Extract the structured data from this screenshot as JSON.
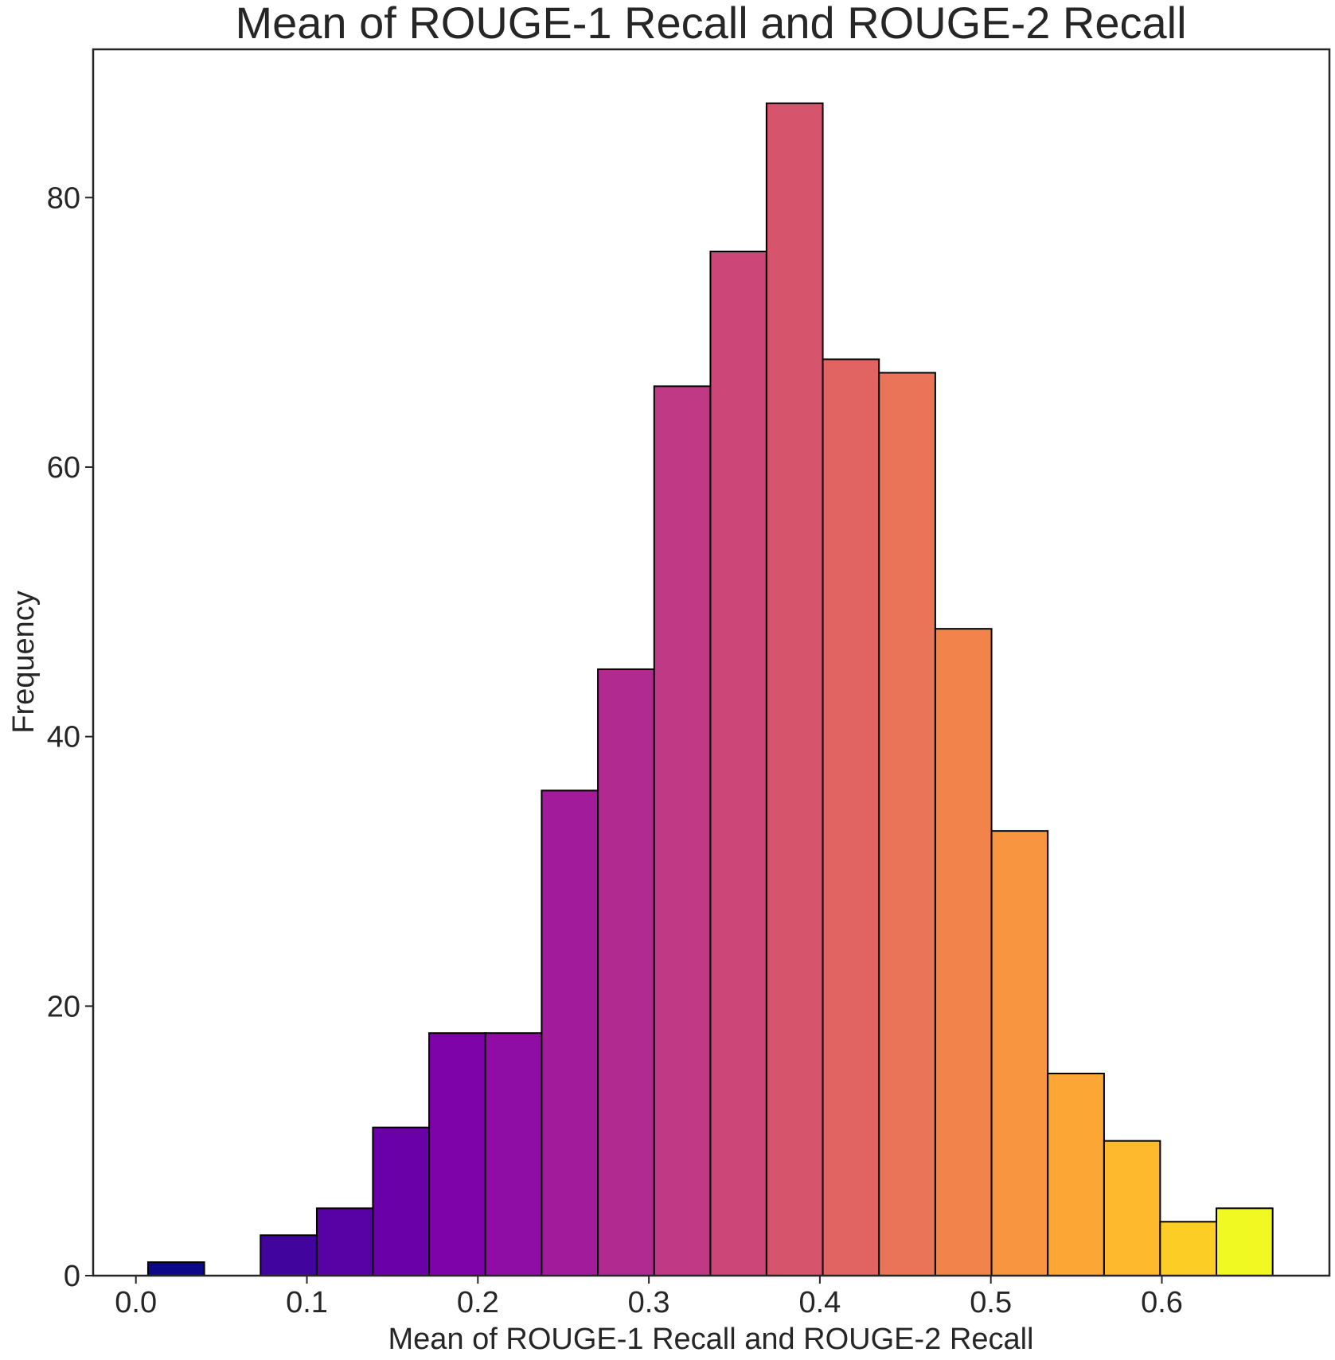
{
  "chart_data": {
    "type": "bar",
    "subtype": "histogram",
    "title": "Mean of ROUGE-1 Recall and ROUGE-2 Recall",
    "xlabel": "Mean of ROUGE-1 Recall and ROUGE-2 Recall",
    "ylabel": "Frequency",
    "xlim": [
      -0.025,
      0.698
    ],
    "ylim": [
      0,
      91
    ],
    "x_ticks": [
      0.0,
      0.1,
      0.2,
      0.3,
      0.4,
      0.5,
      0.6
    ],
    "x_tick_labels": [
      "0.0",
      "0.1",
      "0.2",
      "0.3",
      "0.4",
      "0.5",
      "0.6"
    ],
    "y_ticks": [
      0,
      20,
      40,
      60,
      80
    ],
    "y_tick_labels": [
      "0",
      "20",
      "40",
      "60",
      "80"
    ],
    "bin_edges": [
      0.0071,
      0.04,
      0.0729,
      0.1058,
      0.1386,
      0.1715,
      0.2044,
      0.2373,
      0.2702,
      0.3031,
      0.336,
      0.3688,
      0.4017,
      0.4346,
      0.4675,
      0.5004,
      0.5333,
      0.5662,
      0.599,
      0.6319,
      0.6648
    ],
    "values": [
      1,
      0,
      3,
      5,
      11,
      18,
      18,
      36,
      45,
      66,
      76,
      87,
      68,
      67,
      48,
      33,
      15,
      10,
      4,
      5
    ],
    "colors": [
      "#0d0887",
      "#2a0593",
      "#41049d",
      "#5801a4",
      "#6a00a8",
      "#7e03a8",
      "#8f0da4",
      "#a11b9b",
      "#b12a90",
      "#bf3984",
      "#cc4778",
      "#d6556d",
      "#e16462",
      "#ea7457",
      "#f2844b",
      "#f89540",
      "#fca636",
      "#feba2c",
      "#fcce25",
      "#f0f921"
    ],
    "edge_color": "#000000",
    "grid": false
  }
}
